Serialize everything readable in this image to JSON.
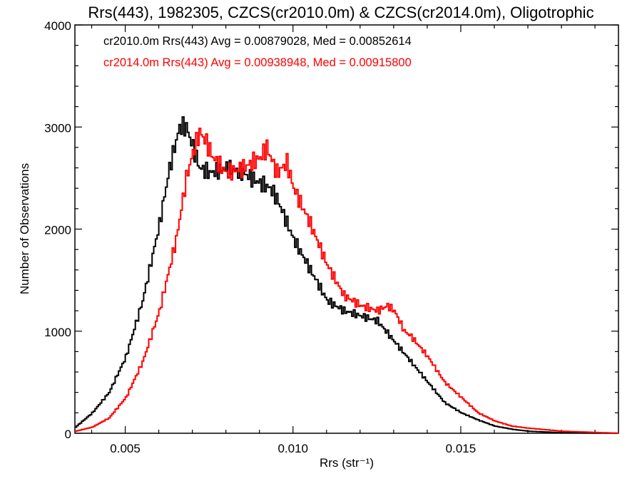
{
  "chart_data": {
    "type": "line",
    "step": true,
    "title": "Rrs(443), 1982305, CZCS(cr2010.0m) & CZCS(cr2014.0m), Oligotrophic",
    "xlabel": "Rrs (str⁻¹)",
    "ylabel": "Number of Observations",
    "xlim": [
      0.0035,
      0.0197
    ],
    "ylim": [
      0,
      4000
    ],
    "x_ticks": [
      0.005,
      0.01,
      0.015
    ],
    "x_tick_labels": [
      "0.005",
      "0.010",
      "0.015"
    ],
    "y_ticks": [
      0,
      1000,
      2000,
      3000,
      4000
    ],
    "y_tick_labels": [
      "0",
      "1000",
      "2000",
      "3000",
      "4000"
    ],
    "legend_position": "top-left",
    "series": [
      {
        "name": "cr2010.0m",
        "legend_text": "cr2010.0m Rrs(443) Avg = 0.00879028, Med = 0.00852614",
        "color": "#000000",
        "x": [
          0.0035,
          0.004,
          0.0045,
          0.005,
          0.0055,
          0.006,
          0.0063,
          0.0066,
          0.0068,
          0.007,
          0.0072,
          0.0075,
          0.008,
          0.0085,
          0.009,
          0.0093,
          0.0095,
          0.01,
          0.0105,
          0.011,
          0.0115,
          0.012,
          0.0125,
          0.013,
          0.0135,
          0.014,
          0.0145,
          0.015,
          0.0155,
          0.016,
          0.0165,
          0.017,
          0.018,
          0.0197
        ],
        "y": [
          60,
          200,
          400,
          750,
          1300,
          2050,
          2600,
          3000,
          3000,
          2800,
          2600,
          2550,
          2600,
          2550,
          2450,
          2400,
          2300,
          1900,
          1600,
          1300,
          1200,
          1150,
          1100,
          900,
          700,
          500,
          300,
          200,
          130,
          70,
          40,
          20,
          5,
          0
        ]
      },
      {
        "name": "cr2014.0m",
        "legend_text": "cr2014.0m Rrs(443) Avg = 0.00938948, Med = 0.00915800",
        "color": "#ff0000",
        "x": [
          0.0035,
          0.004,
          0.0045,
          0.005,
          0.0055,
          0.006,
          0.0065,
          0.0068,
          0.007,
          0.0072,
          0.0074,
          0.0076,
          0.008,
          0.0085,
          0.009,
          0.0092,
          0.0095,
          0.0098,
          0.01,
          0.0105,
          0.011,
          0.0115,
          0.012,
          0.0125,
          0.0128,
          0.013,
          0.0133,
          0.0135,
          0.014,
          0.0145,
          0.015,
          0.0155,
          0.016,
          0.0165,
          0.017,
          0.018,
          0.0197
        ],
        "y": [
          20,
          60,
          150,
          350,
          700,
          1200,
          1900,
          2500,
          2750,
          2950,
          2850,
          2700,
          2550,
          2600,
          2700,
          2800,
          2550,
          2650,
          2400,
          2050,
          1650,
          1350,
          1250,
          1200,
          1250,
          1200,
          1000,
          950,
          750,
          500,
          350,
          200,
          120,
          70,
          50,
          20,
          0
        ]
      }
    ]
  }
}
